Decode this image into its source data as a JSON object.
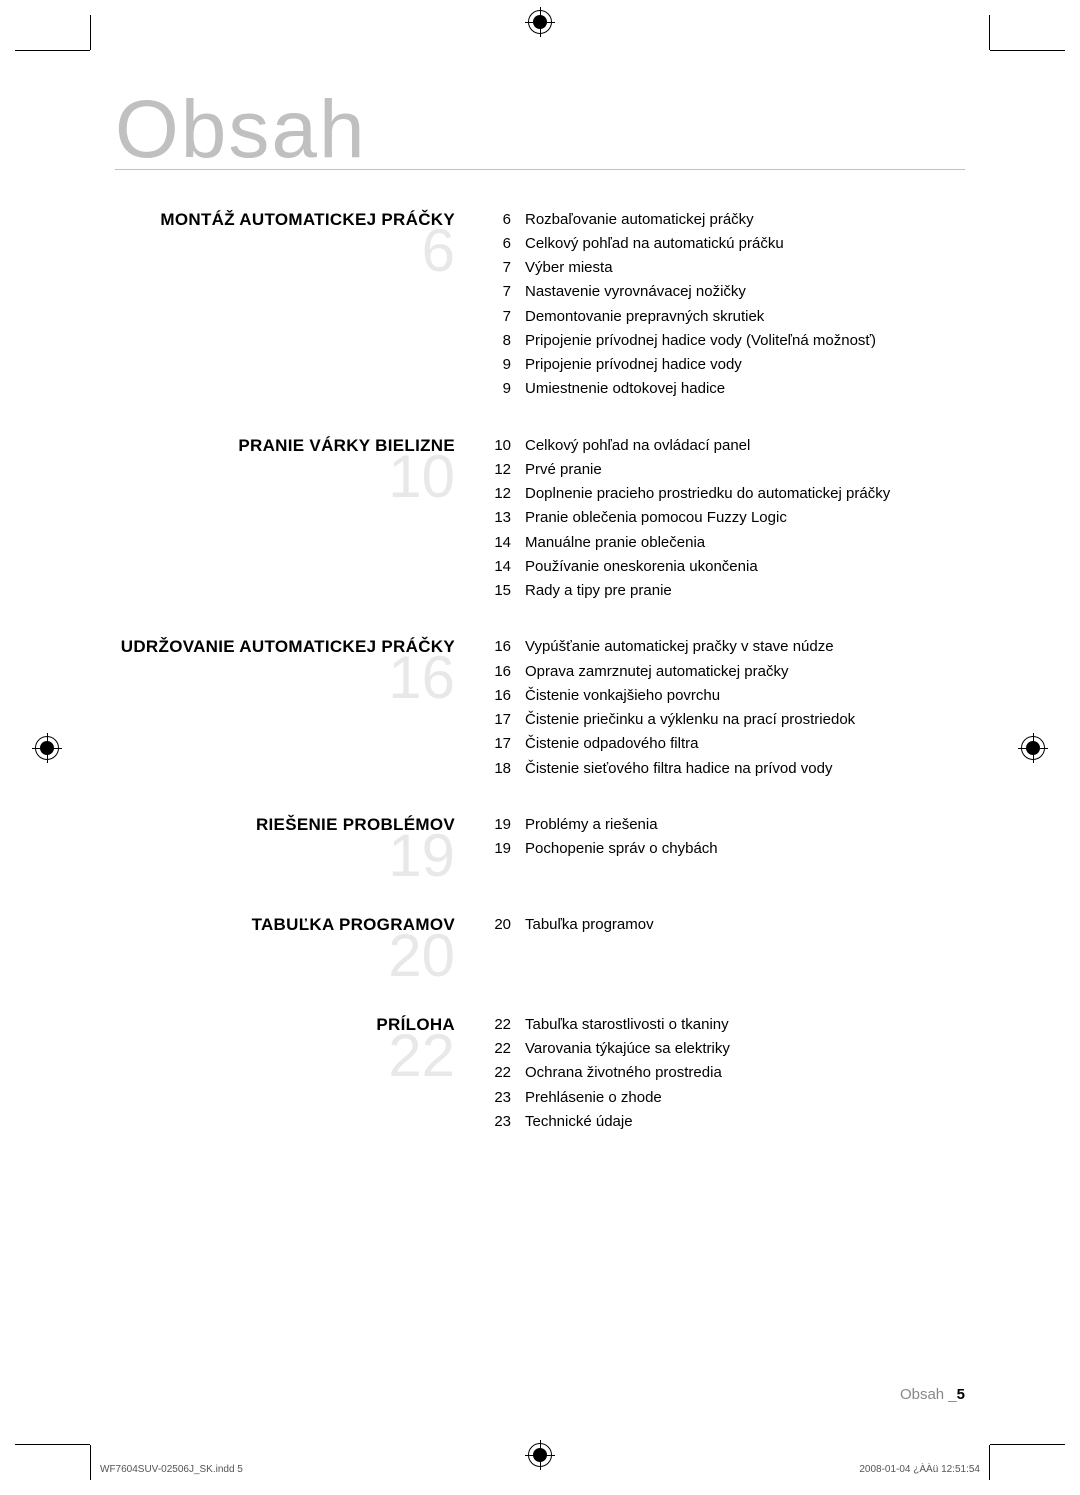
{
  "title": "Obsah",
  "sections": [
    {
      "title": "MONTÁŽ AUTOMATICKEJ PRÁČKY",
      "number": "6",
      "items": [
        {
          "page": "6",
          "text": "Rozbaľovanie automatickej práčky"
        },
        {
          "page": "6",
          "text": "Celkový pohľad na automatickú práčku"
        },
        {
          "page": "7",
          "text": "Výber miesta"
        },
        {
          "page": "7",
          "text": "Nastavenie vyrovnávacej nožičky"
        },
        {
          "page": "7",
          "text": "Demontovanie prepravných skrutiek"
        },
        {
          "page": "8",
          "text": "Pripojenie prívodnej hadice vody (Voliteľná možnosť)"
        },
        {
          "page": "9",
          "text": "Pripojenie prívodnej hadice vody"
        },
        {
          "page": "9",
          "text": "Umiestnenie odtokovej hadice"
        }
      ]
    },
    {
      "title": "PRANIE VÁRKY BIELIZNE",
      "number": "10",
      "items": [
        {
          "page": "10",
          "text": "Celkový pohľad na ovládací panel"
        },
        {
          "page": "12",
          "text": "Prvé pranie"
        },
        {
          "page": "12",
          "text": "Doplnenie pracieho prostriedku do automatickej práčky"
        },
        {
          "page": "13",
          "text": "Pranie oblečenia pomocou Fuzzy Logic"
        },
        {
          "page": "14",
          "text": "Manuálne pranie oblečenia"
        },
        {
          "page": "14",
          "text": "Používanie oneskorenia ukončenia"
        },
        {
          "page": "15",
          "text": "Rady a tipy pre pranie"
        }
      ]
    },
    {
      "title": "UDRŽOVANIE AUTOMATICKEJ PRÁČKY",
      "number": "16",
      "items": [
        {
          "page": "16",
          "text": "Vypúšťanie automatickej pračky v stave núdze"
        },
        {
          "page": "16",
          "text": "Oprava zamrznutej automatickej pračky"
        },
        {
          "page": "16",
          "text": "Čistenie vonkajšieho povrchu"
        },
        {
          "page": "17",
          "text": "Čistenie priečinku a výklenku na prací prostriedok"
        },
        {
          "page": "17",
          "text": "Čistenie odpadového filtra"
        },
        {
          "page": "18",
          "text": "Čistenie sieťového filtra hadice na prívod vody"
        }
      ]
    },
    {
      "title": "RIEŠENIE PROBLÉMOV",
      "number": "19",
      "items": [
        {
          "page": "19",
          "text": "Problémy a riešenia"
        },
        {
          "page": "19",
          "text": "Pochopenie správ o chybách"
        }
      ]
    },
    {
      "title": "TABUĽKA PROGRAMOV",
      "number": "20",
      "items": [
        {
          "page": "20",
          "text": "Tabuľka programov"
        }
      ]
    },
    {
      "title": "PRÍLOHA",
      "number": "22",
      "items": [
        {
          "page": "22",
          "text": "Tabuľka starostlivosti o tkaniny"
        },
        {
          "page": "22",
          "text": "Varovania týkajúce sa elektriky"
        },
        {
          "page": "22",
          "text": "Ochrana životného prostredia"
        },
        {
          "page": "23",
          "text": "Prehlásenie o zhode"
        },
        {
          "page": "23",
          "text": "Technické údaje"
        }
      ]
    }
  ],
  "footer": {
    "label": "Obsah _",
    "page": "5"
  },
  "printFooter": {
    "left": "WF7604SUV-02506J_SK.indd   5",
    "right": "2008-01-04   ¿ÀÀü 12:51:54"
  }
}
